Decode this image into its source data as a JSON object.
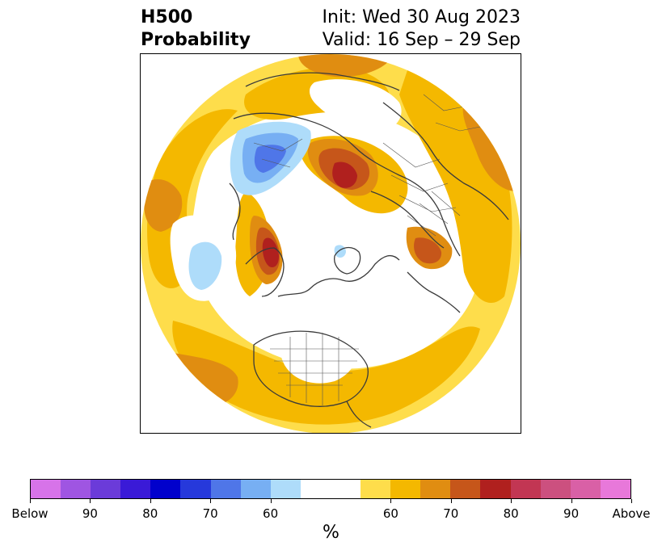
{
  "title": {
    "left_line1": "H500",
    "left_line2": "Probability",
    "right_line1": "Init: Wed 30 Aug 2023",
    "right_line2": "Valid: 16 Sep – 29 Sep"
  },
  "colorbar": {
    "unit": "%",
    "colors": [
      "#d773e9",
      "#9f55e2",
      "#6b3bd9",
      "#3a1ad7",
      "#0101cc",
      "#2639db",
      "#4f76e8",
      "#77aff3",
      "#aedcfa",
      "#ffffff",
      "#fedd4b",
      "#f4b800",
      "#e08d11",
      "#c6561a",
      "#b0201e",
      "#c23653",
      "#cc507f",
      "#d960a6",
      "#e878da"
    ],
    "tick_labels": [
      "Below",
      "90",
      "80",
      "70",
      "60",
      "60",
      "70",
      "80",
      "90",
      "Above"
    ]
  },
  "map": {
    "colors": {
      "light_yellow": "#fedd4b",
      "yellow": "#f4b800",
      "orange": "#e08d11",
      "dark_orange": "#c6561a",
      "red": "#b0201e",
      "light_blue": "#aedcfa",
      "blue": "#77aff3",
      "mid_blue": "#4f76e8",
      "coast": "#3a3a3a"
    }
  }
}
